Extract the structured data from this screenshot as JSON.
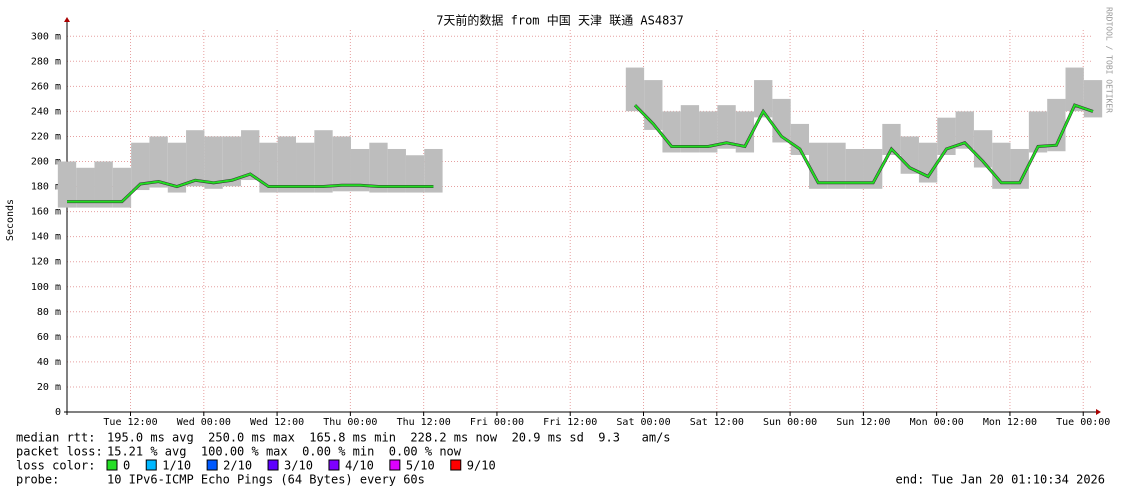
{
  "chart_data": {
    "type": "line",
    "title": "7天前的数据 from 中国 天津 联通 AS4837",
    "y_label": "Seconds",
    "side_label": "RRDTOOL / TOBI OETIKER",
    "xlim": [
      0,
      168
    ],
    "ylim": [
      0,
      0.305
    ],
    "xticks": [
      {
        "value": 10.4,
        "label": "Tue 12:00"
      },
      {
        "value": 22.4,
        "label": "Wed 00:00"
      },
      {
        "value": 34.4,
        "label": "Wed 12:00"
      },
      {
        "value": 46.4,
        "label": "Thu 00:00"
      },
      {
        "value": 58.4,
        "label": "Thu 12:00"
      },
      {
        "value": 70.4,
        "label": "Fri 00:00"
      },
      {
        "value": 82.4,
        "label": "Fri 12:00"
      },
      {
        "value": 94.4,
        "label": "Sat 00:00"
      },
      {
        "value": 106.4,
        "label": "Sat 12:00"
      },
      {
        "value": 118.4,
        "label": "Sun 00:00"
      },
      {
        "value": 130.4,
        "label": "Sun 12:00"
      },
      {
        "value": 142.4,
        "label": "Mon 00:00"
      },
      {
        "value": 154.4,
        "label": "Mon 12:00"
      },
      {
        "value": 166.4,
        "label": "Tue 00:00"
      }
    ],
    "yticks": [
      {
        "value": 0,
        "label": "0"
      },
      {
        "value": 0.02,
        "label": "20 m"
      },
      {
        "value": 0.04,
        "label": "40 m"
      },
      {
        "value": 0.06,
        "label": "60 m"
      },
      {
        "value": 0.08,
        "label": "80 m"
      },
      {
        "value": 0.1,
        "label": "100 m"
      },
      {
        "value": 0.12,
        "label": "120 m"
      },
      {
        "value": 0.14,
        "label": "140 m"
      },
      {
        "value": 0.16,
        "label": "160 m"
      },
      {
        "value": 0.18,
        "label": "180 m"
      },
      {
        "value": 0.2,
        "label": "200 m"
      },
      {
        "value": 0.22,
        "label": "220 m"
      },
      {
        "value": 0.24,
        "label": "240 m"
      },
      {
        "value": 0.26,
        "label": "260 m"
      },
      {
        "value": 0.28,
        "label": "280 m"
      },
      {
        "value": 0.3,
        "label": "300 m"
      }
    ],
    "grid": true,
    "x": [
      0,
      3,
      6,
      9,
      12,
      15,
      18,
      21,
      24,
      27,
      30,
      33,
      36,
      39,
      42,
      45,
      48,
      51,
      54,
      57,
      60,
      63,
      66,
      69,
      72,
      75,
      78,
      81,
      84,
      87,
      90,
      93,
      96,
      99,
      102,
      105,
      108,
      111,
      114,
      117,
      120,
      123,
      126,
      129,
      132,
      135,
      138,
      141,
      144,
      147,
      150,
      153,
      156,
      159,
      162,
      165,
      168
    ],
    "series": [
      {
        "color": "#bdbdbd",
        "values": [
          0.2,
          0.195,
          0.2,
          0.195,
          0.215,
          0.22,
          0.215,
          0.225,
          0.22,
          0.22,
          0.225,
          0.215,
          0.22,
          0.215,
          0.225,
          0.22,
          0.21,
          0.215,
          0.21,
          0.205,
          0.21,
          null,
          null,
          null,
          null,
          null,
          null,
          null,
          null,
          null,
          null,
          0.275,
          0.265,
          0.24,
          0.245,
          0.24,
          0.245,
          0.24,
          0.265,
          0.25,
          0.23,
          0.215,
          0.215,
          0.21,
          0.21,
          0.23,
          0.22,
          0.215,
          0.235,
          0.24,
          0.225,
          0.215,
          0.21,
          0.24,
          0.25,
          0.275,
          0.265
        ]
      },
      {
        "color": "#22dd22",
        "values": [
          0.168,
          0.168,
          0.168,
          0.168,
          0.182,
          0.184,
          0.18,
          0.185,
          0.183,
          0.185,
          0.19,
          0.18,
          0.18,
          0.18,
          0.18,
          0.181,
          0.181,
          0.18,
          0.18,
          0.18,
          0.18,
          null,
          null,
          null,
          null,
          null,
          null,
          null,
          null,
          null,
          null,
          0.245,
          0.23,
          0.212,
          0.212,
          0.212,
          0.215,
          0.212,
          0.24,
          0.22,
          0.21,
          0.183,
          0.183,
          0.183,
          0.183,
          0.21,
          0.195,
          0.188,
          0.21,
          0.215,
          0.2,
          0.183,
          0.183,
          0.212,
          0.213,
          0.245,
          0.24
        ]
      }
    ],
    "stats": [
      {
        "label": "median rtt:",
        "text": "195.0 ms avg  250.0 ms max  165.8 ms min  228.2 ms now  20.9 ms sd  9.3   am/s"
      },
      {
        "label": "packet loss:",
        "text": "15.21 % avg  100.00 % max  0.00 % min  0.00 % now"
      }
    ],
    "loss_label": "loss color:",
    "legend": [
      {
        "label": "0",
        "color": "#26e026"
      },
      {
        "label": "1/10",
        "color": "#00b8ff"
      },
      {
        "label": "2/10",
        "color": "#0059ff"
      },
      {
        "label": "3/10",
        "color": "#5e00ff"
      },
      {
        "label": "4/10",
        "color": "#7e00ff"
      },
      {
        "label": "5/10",
        "color": "#dd00ff"
      },
      {
        "label": "9/10",
        "color": "#ff0000"
      }
    ],
    "probe_label": "probe:",
    "probe": "10 IPv6-ICMP Echo Pings (64 Bytes) every 60s",
    "end": "end: Tue Jan 20 01:10:34 2026"
  }
}
